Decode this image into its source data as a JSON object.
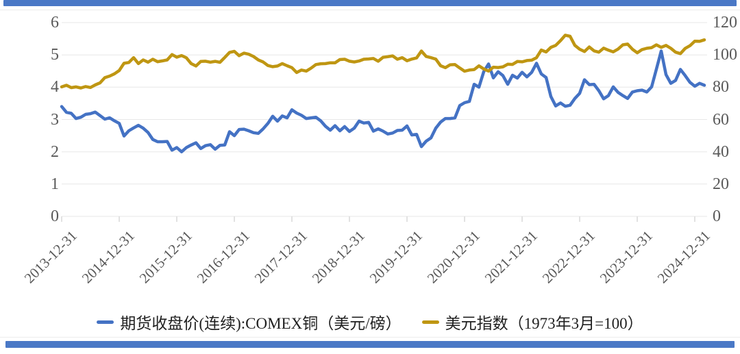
{
  "page": {
    "accent_bar_color": "#4a78c6",
    "grid_color": "#e7e7e7",
    "tick_color": "#d9d9d9",
    "axis_text_color": "#595959",
    "legend_text_color": "#1f1f1f"
  },
  "legend": {
    "items": [
      {
        "label": "期货收盘价(连续):COMEX铜（美元/磅）",
        "color": "#4472c4"
      },
      {
        "label": "美元指数（1973年3月=100）",
        "color": "#bf9612"
      }
    ]
  },
  "chart_data": {
    "type": "line",
    "title": "",
    "x_start": "2013-12",
    "x_interval": "monthly",
    "x_tick_labels": [
      "2013-12-31",
      "2014-12-31",
      "2015-12-31",
      "2016-12-31",
      "2017-12-31",
      "2018-12-31",
      "2019-12-31",
      "2020-12-31",
      "2021-12-31",
      "2022-12-31",
      "2023-12-31",
      "2024-12-31"
    ],
    "left_axis": {
      "ticks": [
        0,
        1,
        2,
        3,
        4,
        5,
        6
      ],
      "range": [
        0,
        6
      ]
    },
    "right_axis": {
      "ticks": [
        0,
        20,
        40,
        60,
        80,
        100,
        120
      ],
      "range": [
        0,
        120
      ]
    },
    "grid": true,
    "legend_position": "bottom",
    "series": [
      {
        "name": "期货收盘价(连续):COMEX铜（美元/磅）",
        "axis": "left",
        "color": "#4472c4",
        "values": [
          3.4,
          3.22,
          3.19,
          3.03,
          3.07,
          3.16,
          3.18,
          3.23,
          3.12,
          3.01,
          3.05,
          2.96,
          2.88,
          2.49,
          2.65,
          2.74,
          2.82,
          2.73,
          2.6,
          2.38,
          2.31,
          2.31,
          2.32,
          2.05,
          2.13,
          2.0,
          2.13,
          2.21,
          2.28,
          2.1,
          2.19,
          2.22,
          2.08,
          2.2,
          2.21,
          2.62,
          2.5,
          2.69,
          2.7,
          2.65,
          2.59,
          2.57,
          2.71,
          2.88,
          3.1,
          2.95,
          3.11,
          3.05,
          3.3,
          3.2,
          3.13,
          3.03,
          3.05,
          3.07,
          2.96,
          2.79,
          2.67,
          2.81,
          2.65,
          2.78,
          2.63,
          2.73,
          2.95,
          2.89,
          2.91,
          2.64,
          2.71,
          2.64,
          2.55,
          2.58,
          2.66,
          2.67,
          2.8,
          2.52,
          2.54,
          2.16,
          2.33,
          2.43,
          2.73,
          2.92,
          3.03,
          3.03,
          3.05,
          3.43,
          3.52,
          3.56,
          4.09,
          4.0,
          4.48,
          4.72,
          4.29,
          4.48,
          4.36,
          4.09,
          4.37,
          4.28,
          4.46,
          4.32,
          4.46,
          4.74,
          4.41,
          4.3,
          3.71,
          3.42,
          3.51,
          3.41,
          3.44,
          3.65,
          3.81,
          4.23,
          4.08,
          4.09,
          3.89,
          3.64,
          3.74,
          4.01,
          3.84,
          3.74,
          3.65,
          3.85,
          3.89,
          3.91,
          3.85,
          4.01,
          4.56,
          5.12,
          4.39,
          4.12,
          4.21,
          4.55,
          4.36,
          4.15,
          4.03,
          4.12,
          4.06
        ]
      },
      {
        "name": "美元指数（1973年3月=100）",
        "axis": "right",
        "color": "#bf9612",
        "values": [
          80.2,
          81.2,
          79.7,
          80.2,
          79.5,
          80.4,
          79.8,
          81.4,
          82.7,
          85.9,
          86.9,
          88.3,
          90.3,
          94.8,
          95.3,
          98.3,
          94.6,
          96.9,
          95.5,
          97.3,
          95.8,
          96.3,
          96.9,
          100.2,
          98.6,
          99.6,
          98.2,
          94.6,
          93.1,
          95.9,
          96.1,
          95.5,
          96.0,
          95.4,
          98.4,
          101.5,
          102.2,
          99.5,
          101.1,
          100.4,
          99.0,
          96.9,
          95.6,
          93.4,
          92.7,
          93.1,
          94.6,
          93.3,
          92.1,
          89.1,
          90.6,
          90.0,
          91.8,
          94.0,
          94.5,
          94.6,
          95.1,
          95.1,
          97.1,
          97.3,
          96.1,
          95.6,
          96.2,
          97.3,
          97.5,
          97.8,
          96.1,
          98.5,
          98.9,
          99.4,
          97.3,
          98.3,
          96.4,
          97.4,
          98.1,
          102.4,
          99.0,
          98.3,
          97.4,
          93.3,
          92.1,
          93.9,
          94.0,
          91.9,
          89.9,
          90.6,
          90.9,
          93.2,
          91.3,
          90.0,
          92.4,
          92.2,
          92.6,
          94.2,
          94.1,
          95.9,
          95.7,
          96.5,
          96.7,
          98.3,
          103.0,
          101.8,
          104.7,
          105.9,
          108.8,
          112.2,
          111.5,
          105.9,
          103.5,
          102.1,
          104.9,
          102.5,
          101.7,
          104.2,
          102.9,
          101.9,
          103.6,
          106.2,
          106.7,
          103.5,
          101.3,
          103.3,
          104.1,
          104.5,
          106.2,
          104.7,
          105.9,
          104.1,
          101.7,
          100.8,
          104.0,
          105.7,
          108.5,
          108.4,
          109.3
        ]
      }
    ]
  }
}
